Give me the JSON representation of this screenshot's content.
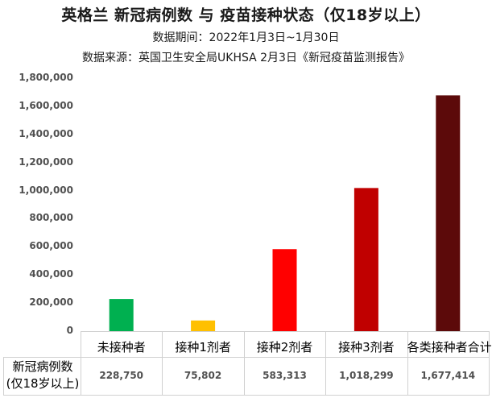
{
  "titles": {
    "main": "英格兰 新冠病例数 与 疫苗接种状态（仅18岁以上）",
    "period": "数据期间：2022年1月3日~1月30日",
    "source": "数据来源：英国卫生安全局UKHSA 2月3日《新冠疫苗监测报告》"
  },
  "table": {
    "row_label_line1": "新冠病例数",
    "row_label_line2": "(仅18岁以上)",
    "values_text": [
      "228,750",
      "75,802",
      "583,313",
      "1,018,299",
      "1,677,414"
    ]
  },
  "chart_data": {
    "type": "bar",
    "categories": [
      "未接种者",
      "接种1剂者",
      "接种2剂者",
      "接种3剂者",
      "各类接种者合计"
    ],
    "values": [
      228750,
      75802,
      583313,
      1018299,
      1677414
    ],
    "colors": [
      "#00b050",
      "#ffc000",
      "#ff0000",
      "#c00000",
      "#5c0a0a"
    ],
    "ylim": [
      0,
      1800000
    ],
    "yticks": [
      "0",
      "200,000",
      "400,000",
      "600,000",
      "800,000",
      "1,000,000",
      "1,200,000",
      "1,400,000",
      "1,600,000",
      "1,800,000"
    ],
    "grid": false,
    "legend": "none"
  }
}
